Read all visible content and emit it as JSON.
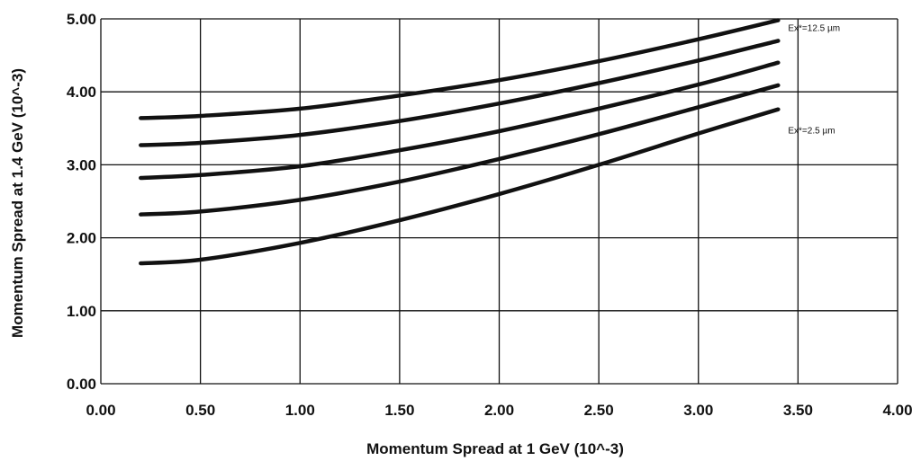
{
  "chart_data": {
    "type": "line",
    "title": "",
    "xlabel": "Momentum Spread at 1 GeV (10^-3)",
    "ylabel": "Momentum Spread at 1.4 GeV (10^-3)",
    "xlim": [
      0,
      4
    ],
    "ylim": [
      0,
      5
    ],
    "x_ticks": [
      "0.00",
      "0.50",
      "1.00",
      "1.50",
      "2.00",
      "2.50",
      "3.00",
      "3.50",
      "4.00"
    ],
    "y_ticks": [
      "0.00",
      "1.00",
      "2.00",
      "3.00",
      "4.00",
      "5.00"
    ],
    "grid": true,
    "legend": "none",
    "x": [
      0.2,
      0.5,
      1.0,
      1.5,
      2.0,
      2.5,
      3.0,
      3.4
    ],
    "series": [
      {
        "values": [
          3.64,
          3.67,
          3.77,
          3.95,
          4.16,
          4.42,
          4.72,
          4.98
        ]
      },
      {
        "values": [
          3.27,
          3.3,
          3.41,
          3.6,
          3.84,
          4.12,
          4.43,
          4.7
        ]
      },
      {
        "values": [
          2.82,
          2.86,
          2.98,
          3.2,
          3.46,
          3.77,
          4.1,
          4.4
        ]
      },
      {
        "values": [
          2.32,
          2.36,
          2.52,
          2.77,
          3.08,
          3.42,
          3.79,
          4.09
        ]
      },
      {
        "values": [
          1.65,
          1.7,
          1.93,
          2.24,
          2.6,
          3.0,
          3.43,
          3.76
        ]
      }
    ],
    "annotations": [
      {
        "text": "Ex*=12.5 µm",
        "x": 3.5,
        "y": 4.88
      },
      {
        "text": "Ex*=2.5 µm",
        "x": 3.5,
        "y": 3.48
      }
    ]
  }
}
